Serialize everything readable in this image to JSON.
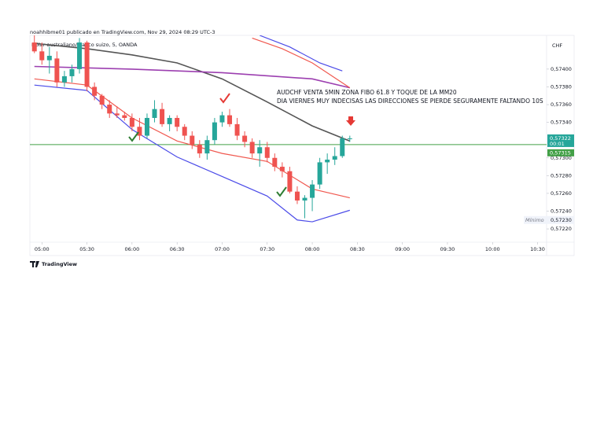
{
  "header": {
    "author_line": "noahhibme01 publicado en TradingView.com, Nov 29, 2024 08:29 UTC-3",
    "symbol": "Dólar australiano/Franco suizo, 5, OANDA",
    "currency": "CHF",
    "brand": "TradingView"
  },
  "chart_data": {
    "type": "candlestick",
    "x": [
      295,
      300,
      305,
      310,
      315,
      320,
      325,
      330,
      335,
      340,
      345,
      350,
      355,
      360,
      365,
      370,
      375,
      380,
      385,
      390,
      395,
      400,
      405,
      410,
      415,
      420,
      425,
      430,
      435,
      440,
      445,
      450,
      455,
      460,
      465,
      470,
      475,
      480,
      485,
      490,
      495,
      500,
      505
    ],
    "open": [
      0.5743,
      0.5742,
      0.5741,
      0.57412,
      0.57385,
      0.57392,
      0.574,
      0.5743,
      0.5738,
      0.5737,
      0.5736,
      0.5735,
      0.57348,
      0.57345,
      0.57335,
      0.57325,
      0.57345,
      0.57355,
      0.57338,
      0.57345,
      0.57335,
      0.57325,
      0.57315,
      0.57305,
      0.5732,
      0.5734,
      0.57348,
      0.57338,
      0.57325,
      0.57318,
      0.57305,
      0.57312,
      0.573,
      0.5729,
      0.57285,
      0.57262,
      0.57252,
      0.57255,
      0.5727,
      0.57295,
      0.57298,
      0.57302,
      0.57322
    ],
    "high": [
      0.57438,
      0.5743,
      0.57425,
      0.5742,
      0.57398,
      0.57405,
      0.57435,
      0.57432,
      0.57385,
      0.57372,
      0.57365,
      0.57358,
      0.57352,
      0.5735,
      0.57345,
      0.5735,
      0.57365,
      0.57362,
      0.57348,
      0.57348,
      0.57338,
      0.5733,
      0.5732,
      0.57325,
      0.57345,
      0.57352,
      0.57355,
      0.57345,
      0.5733,
      0.57322,
      0.5732,
      0.57318,
      0.57305,
      0.57295,
      0.5729,
      0.57268,
      0.57258,
      0.57275,
      0.573,
      0.57305,
      0.57312,
      0.57325,
      0.57325
    ],
    "low": [
      0.57418,
      0.57405,
      0.57395,
      0.5738,
      0.5738,
      0.57385,
      0.57395,
      0.57375,
      0.57365,
      0.57355,
      0.57345,
      0.57345,
      0.57342,
      0.5733,
      0.5732,
      0.57322,
      0.5734,
      0.57335,
      0.5733,
      0.5733,
      0.5732,
      0.5731,
      0.573,
      0.57298,
      0.57315,
      0.57335,
      0.57335,
      0.5732,
      0.57312,
      0.573,
      0.5729,
      0.57295,
      0.57285,
      0.57278,
      0.5726,
      0.57248,
      0.57232,
      0.5724,
      0.57265,
      0.57282,
      0.57292,
      0.573,
      0.57318
    ],
    "close": [
      0.5742,
      0.5741,
      0.57415,
      0.57385,
      0.57392,
      0.574,
      0.5743,
      0.5738,
      0.5737,
      0.5736,
      0.5735,
      0.57348,
      0.57345,
      0.57335,
      0.57325,
      0.57345,
      0.57355,
      0.57338,
      0.57345,
      0.57335,
      0.57325,
      0.57315,
      0.57305,
      0.5732,
      0.5734,
      0.57348,
      0.57338,
      0.57325,
      0.57318,
      0.57305,
      0.57312,
      0.573,
      0.5729,
      0.57285,
      0.57262,
      0.57252,
      0.57255,
      0.5727,
      0.57295,
      0.57298,
      0.57302,
      0.57322,
      0.57322
    ],
    "up_color": "#26a69a",
    "down_color": "#ef5350",
    "lines": [
      {
        "color": "#555555",
        "x": [
          295,
          330,
          360,
          390,
          420,
          450,
          480,
          505
        ],
        "values": [
          0.57429,
          0.57423,
          0.57416,
          0.57407,
          0.57389,
          0.57363,
          0.57336,
          0.57319
        ]
      },
      {
        "color": "#9c3fb0",
        "x": [
          295,
          360,
          420,
          480,
          505
        ],
        "values": [
          0.57403,
          0.574,
          0.57396,
          0.57389,
          0.57379
        ]
      },
      {
        "color": "#f0584f",
        "x": [
          295,
          330,
          360,
          390,
          420,
          450,
          480,
          505
        ],
        "values": [
          0.57389,
          0.57382,
          0.57345,
          0.57319,
          0.57305,
          0.57296,
          0.57265,
          0.57255
        ]
      },
      {
        "color": "#4b4be8",
        "x": [
          295,
          330,
          360,
          390,
          420,
          450,
          470,
          480,
          505
        ],
        "values": [
          0.57382,
          0.57376,
          0.57332,
          0.57301,
          0.57279,
          0.57257,
          0.5723,
          0.57228,
          0.57241
        ]
      },
      {
        "color": "#f0584f",
        "x": [
          440,
          460,
          480,
          505
        ],
        "values": [
          0.57435,
          0.57423,
          0.57407,
          0.57379
        ]
      },
      {
        "color": "#4b4be8",
        "x": [
          445,
          465,
          485,
          500
        ],
        "values": [
          0.57438,
          0.57425,
          0.57407,
          0.57398
        ]
      }
    ],
    "hline": {
      "value": 0.57315,
      "label": "0,57315",
      "color": "#43a047"
    },
    "last_price": {
      "value": 0.57322,
      "label": "0,57322",
      "countdown": "00:01",
      "color": "#26a69a"
    },
    "minimum": {
      "title": "Mínimo",
      "value": 0.5723,
      "label": "0,57230"
    },
    "annotations": [
      "AUDCHF VENTA 5MIN ZONA FIBO 61.8   Y TOQUE DE LA MM20",
      "DIA VIERNES MUY INDECISAS LAS DIRECCIONES SE PIERDE SEGURAMENTE FALTANDO 10S"
    ],
    "xlim": [
      292,
      636
    ],
    "xticks": [
      {
        "value": 300,
        "label": "05:00"
      },
      {
        "value": 330,
        "label": "05:30"
      },
      {
        "value": 360,
        "label": "06:00"
      },
      {
        "value": 390,
        "label": "06:30"
      },
      {
        "value": 420,
        "label": "07:00"
      },
      {
        "value": 450,
        "label": "07:30"
      },
      {
        "value": 480,
        "label": "08:00"
      },
      {
        "value": 510,
        "label": "08:30"
      },
      {
        "value": 540,
        "label": "09:00"
      },
      {
        "value": 570,
        "label": "09:30"
      },
      {
        "value": 600,
        "label": "10:00"
      },
      {
        "value": 630,
        "label": "10:30"
      }
    ],
    "ylim": [
      0.57205,
      0.57438
    ],
    "yticks": [
      {
        "value": 0.5722,
        "label": "0,57220"
      },
      {
        "value": 0.5724,
        "label": "0,57240"
      },
      {
        "value": 0.5726,
        "label": "0,57260"
      },
      {
        "value": 0.5728,
        "label": "0,57280"
      },
      {
        "value": 0.573,
        "label": "0,57300"
      },
      {
        "value": 0.5734,
        "label": "0,57340"
      },
      {
        "value": 0.5736,
        "label": "0,57360"
      },
      {
        "value": 0.5738,
        "label": "0,57380"
      },
      {
        "value": 0.574,
        "label": "0,57400"
      }
    ],
    "grid": false
  }
}
